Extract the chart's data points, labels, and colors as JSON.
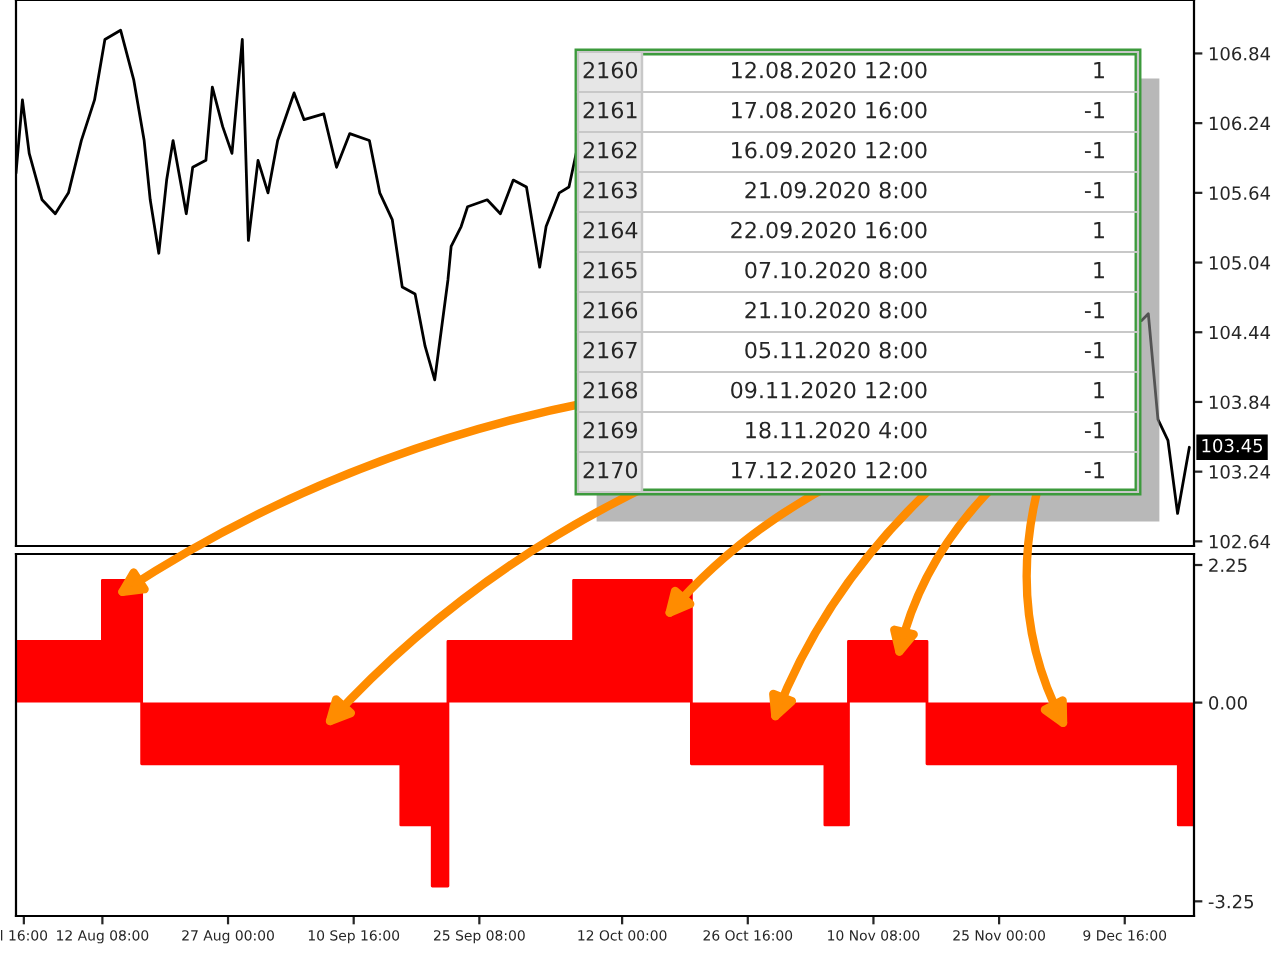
{
  "chart_data": [
    {
      "type": "line",
      "xlim": [
        "2020-08-02T06:00",
        "2020-12-17T18:00"
      ],
      "ylim": [
        102.6,
        107.3
      ],
      "yticks": [
        106.84,
        106.24,
        105.64,
        105.04,
        104.44,
        103.84,
        103.24,
        102.64
      ],
      "tick_labels": "y",
      "series": [
        {
          "color": "#000000",
          "x": [
            "2020-08-02T06:00",
            "2020-08-03T00:00",
            "2020-08-03T19:00",
            "2020-08-05T07:00",
            "2020-08-06T20:00",
            "2020-08-08T09:00",
            "2020-08-09T21:00",
            "2020-08-11T10:00",
            "2020-08-12T15:00",
            "2020-08-14T11:00",
            "2020-08-16T00:00",
            "2020-08-17T05:00",
            "2020-08-17T22:00",
            "2020-08-18T22:00",
            "2020-08-19T20:00",
            "2020-08-20T14:00",
            "2020-08-22T03:00",
            "2020-08-22T21:00",
            "2020-08-24T10:00",
            "2020-08-25T04:00",
            "2020-08-26T09:00",
            "2020-08-27T11:00",
            "2020-08-28T16:00",
            "2020-08-29T09:00",
            "2020-08-30T12:00",
            "2020-08-31T16:00",
            "2020-09-01T19:00",
            "2020-09-03T17:00",
            "2020-09-04T21:00",
            "2020-09-07T04:00",
            "2020-09-08T16:00",
            "2020-09-10T05:00",
            "2020-09-12T12:00",
            "2020-09-13T17:00",
            "2020-09-15T04:00",
            "2020-09-16T08:00",
            "2020-09-17T20:00",
            "2020-09-19T00:00",
            "2020-09-20T03:00",
            "2020-09-21T16:00",
            "2020-09-22T01:00",
            "2020-09-23T05:00",
            "2020-09-23T23:00",
            "2020-09-26T06:00",
            "2020-09-27T19:00",
            "2020-09-29T07:00",
            "2020-09-30T20:00",
            "2020-10-02T09:00",
            "2020-10-03T03:00",
            "2020-10-04T16:00",
            "2020-10-05T19:00",
            "2020-10-06T23:00",
            "2020-10-07T10:00",
            "2020-11-01T22:00",
            "2020-12-10T03:00",
            "2020-12-11T15:00",
            "2020-12-12T10:00",
            "2020-12-13T13:00",
            "2020-12-14T17:00",
            "2020-12-15T20:00",
            "2020-12-17T05:00"
          ],
          "values": [
            105.81,
            106.44,
            105.98,
            105.58,
            105.46,
            105.64,
            106.09,
            106.44,
            106.96,
            107.04,
            106.61,
            106.09,
            105.58,
            105.12,
            105.75,
            106.09,
            105.46,
            105.86,
            105.92,
            106.55,
            106.21,
            105.98,
            106.96,
            105.23,
            105.92,
            105.64,
            106.09,
            106.5,
            106.27,
            106.32,
            105.86,
            106.15,
            106.09,
            105.64,
            105.41,
            104.83,
            104.77,
            104.32,
            104.03,
            104.89,
            105.18,
            105.35,
            105.52,
            105.58,
            105.46,
            105.75,
            105.69,
            105.0,
            105.35,
            105.64,
            105.69,
            106.09,
            null,
            null,
            null,
            104.54,
            104.6,
            103.69,
            103.51,
            102.88,
            103.45
          ]
        }
      ],
      "annotations": [
        "2160",
        "12.08.2020 12:00",
        "1",
        "2161",
        "17.08.2020 16:00",
        "-1",
        "2162",
        "16.09.2020 12:00",
        "-1",
        "2163",
        "21.09.2020 8:00",
        "-1",
        "2164",
        "22.09.2020 16:00",
        "1",
        "2165",
        "07.10.2020 8:00",
        "1",
        "2166",
        "21.10.2020 8:00",
        "-1",
        "2167",
        "05.11.2020 8:00",
        "-1",
        "2168",
        "09.11.2020 12:00",
        "1",
        "2169",
        "18.11.2020 4:00",
        "-1",
        "2170",
        "17.12.2020 12:00",
        "-1",
        {
          "text": "103.45",
          "x": "2020-12-17T05:00",
          "y": 103.45
        }
      ]
    },
    {
      "type": "area",
      "xlim": [
        "2020-08-02T06:00",
        "2020-12-17T18:00"
      ],
      "ylim": [
        -3.49,
        2.43
      ],
      "yticks": [
        2.25,
        {
          "value": 0,
          "label": "0.00"
        },
        -3.25
      ],
      "xticks": [
        {
          "value": "2020-08-03T04:00",
          "label": "l 16:00"
        },
        {
          "value": "2020-08-12T08:00",
          "label": "12 Aug 08:00"
        },
        {
          "value": "2020-08-27T00:00",
          "label": "27 Aug 00:00"
        },
        {
          "value": "2020-09-10T16:00",
          "label": "10 Sep 16:00"
        },
        {
          "value": "2020-09-25T08:00",
          "label": "25 Sep 08:00"
        },
        {
          "value": "2020-10-12T00:00",
          "label": "12 Oct 00:00"
        },
        {
          "value": "2020-10-26T16:00",
          "label": "26 Oct 16:00"
        },
        {
          "value": "2020-11-10T08:00",
          "label": "10 Nov 08:00"
        },
        {
          "value": "2020-11-25T00:00",
          "label": "25 Nov 00:00"
        },
        {
          "value": "2020-12-09T16:00",
          "label": "9 Dec 16:00"
        }
      ],
      "x": [
        "2020-08-02T06:00",
        "2020-08-12T08:00",
        "2020-08-12T08:00",
        "2020-08-16T22:00",
        "2020-08-16T22:00",
        "2020-09-16T04:00",
        "2020-09-16T04:00",
        "2020-09-19T20:00",
        "2020-09-19T20:00",
        "2020-09-21T16:00",
        "2020-09-21T16:00",
        "2020-10-06T08:00",
        "2020-10-06T08:00",
        "2020-10-20T02:00",
        "2020-10-20T02:00",
        "2020-11-04T16:00",
        "2020-11-04T16:00",
        "2020-11-07T10:00",
        "2020-11-07T10:00",
        "2020-11-16T14:00",
        "2020-11-16T14:00",
        "2020-12-15T22:00",
        "2020-12-15T22:00",
        "2020-12-17T18:00"
      ],
      "series": [
        {
          "color": "#ff0000",
          "values": [
            1,
            1,
            2,
            2,
            -1,
            -1,
            -2,
            -2,
            -3,
            -3,
            1,
            1,
            2,
            2,
            -1,
            -1,
            -2,
            -2,
            1,
            1,
            -1,
            -1,
            -2,
            -2
          ]
        }
      ]
    }
  ]
}
